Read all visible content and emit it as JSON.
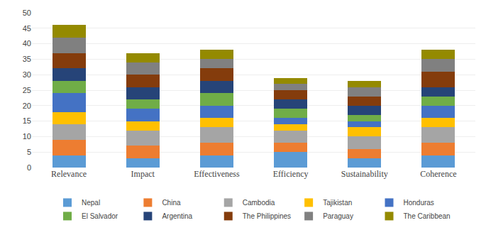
{
  "chart_data": {
    "type": "bar",
    "stacked": true,
    "categories": [
      "Relevance",
      "Impact",
      "Effectiveness",
      "Efficiency",
      "Sustainability",
      "Coherence"
    ],
    "series": [
      {
        "name": "Nepal",
        "color": "#5B9BD5",
        "values": [
          4,
          3,
          4,
          5,
          3,
          4
        ]
      },
      {
        "name": "China",
        "color": "#ED7D31",
        "values": [
          5,
          4,
          4,
          3,
          3,
          4
        ]
      },
      {
        "name": "Cambodia",
        "color": "#A5A5A5",
        "values": [
          5,
          5,
          5,
          4,
          4,
          5
        ]
      },
      {
        "name": "Tajikistan",
        "color": "#FFC000",
        "values": [
          4,
          3,
          3,
          2,
          3,
          3
        ]
      },
      {
        "name": "Honduras",
        "color": "#4472C4",
        "values": [
          6,
          4,
          4,
          2,
          2,
          4
        ]
      },
      {
        "name": "El Salvador",
        "color": "#70AD47",
        "values": [
          4,
          3,
          4,
          3,
          2,
          3
        ]
      },
      {
        "name": "Argentina",
        "color": "#264478",
        "values": [
          4,
          4,
          4,
          3,
          3,
          3
        ]
      },
      {
        "name": "The Philippines",
        "color": "#843C0C",
        "values": [
          5,
          4,
          4,
          3,
          3,
          5
        ]
      },
      {
        "name": "Paraguay",
        "color": "#808080",
        "values": [
          5,
          4,
          3,
          2,
          3,
          4
        ]
      },
      {
        "name": "The Caribbean",
        "color": "#948A00",
        "values": [
          4,
          3,
          3,
          2,
          2,
          3
        ]
      }
    ],
    "ylim": [
      0,
      50
    ],
    "yticks": [
      0,
      5,
      10,
      15,
      20,
      25,
      30,
      35,
      40,
      45,
      50
    ],
    "grid": true,
    "legend": "bottom"
  }
}
